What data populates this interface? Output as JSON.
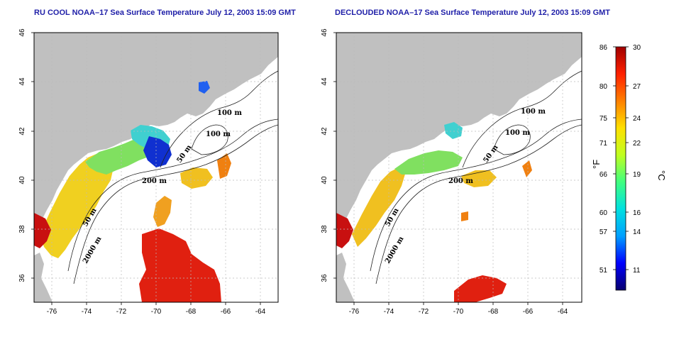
{
  "panels": [
    {
      "title": "RU COOL NOAA–17 Sea Surface Temperature July 12, 2003 15:09 GMT",
      "contour_labels": [
        "100 m",
        "100 m",
        "50 m",
        "200 m",
        "50 m",
        "2000 m"
      ]
    },
    {
      "title": "DECLOUDED NOAA–17 Sea Surface Temperature July 12, 2003 15:09 GMT",
      "contour_labels": [
        "100 m",
        "100 m",
        "50 m",
        "200 m",
        "50 m",
        "2000 m"
      ]
    }
  ],
  "axes": {
    "lon_ticks": [
      "-76",
      "-74",
      "-72",
      "-70",
      "-68",
      "-66",
      "-64"
    ],
    "lat_ticks": [
      "46",
      "44",
      "42",
      "40",
      "38",
      "36"
    ]
  },
  "colorbar": {
    "fahrenheit_ticks": [
      "86",
      "80",
      "75",
      "71",
      "66",
      "60",
      "57",
      "51"
    ],
    "celsius_ticks": [
      "30",
      "27",
      "24",
      "22",
      "19",
      "16",
      "14",
      "11"
    ],
    "fahrenheit_unit": "°F",
    "celsius_unit": "°C",
    "colors": [
      "#08006e",
      "#0000ff",
      "#00a0ff",
      "#00e0e0",
      "#40ff80",
      "#c0ff20",
      "#ffe000",
      "#ff8000",
      "#ff2000",
      "#a00000"
    ]
  },
  "colors": {
    "land": "#c0c0c0",
    "title": "#1f1fa8",
    "grid": "#bbbbbb"
  }
}
